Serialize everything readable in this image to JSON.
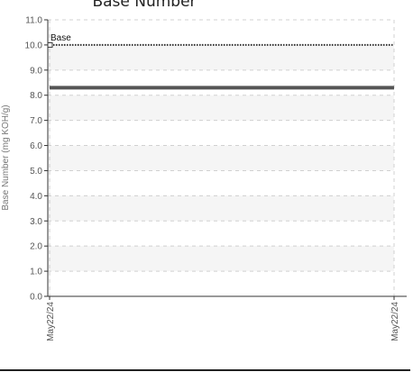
{
  "chart_data": {
    "type": "line",
    "title": "Base Number",
    "xlabel": "",
    "ylabel": "Base Number (mg KOH/g)",
    "x_categories": [
      "May22/24",
      "May22/24"
    ],
    "ylim": [
      0,
      11
    ],
    "y_ticks": [
      "0.0",
      "1.0",
      "2.0",
      "3.0",
      "4.0",
      "5.0",
      "6.0",
      "7.0",
      "8.0",
      "9.0",
      "10.0",
      "11.0"
    ],
    "grid": true,
    "series": [
      {
        "values": [
          8.3,
          8.3
        ],
        "color": "#555555"
      }
    ],
    "reference_lines": [
      {
        "name": "Base",
        "value": 10.0,
        "style": "dotted",
        "color": "#333333"
      }
    ]
  }
}
